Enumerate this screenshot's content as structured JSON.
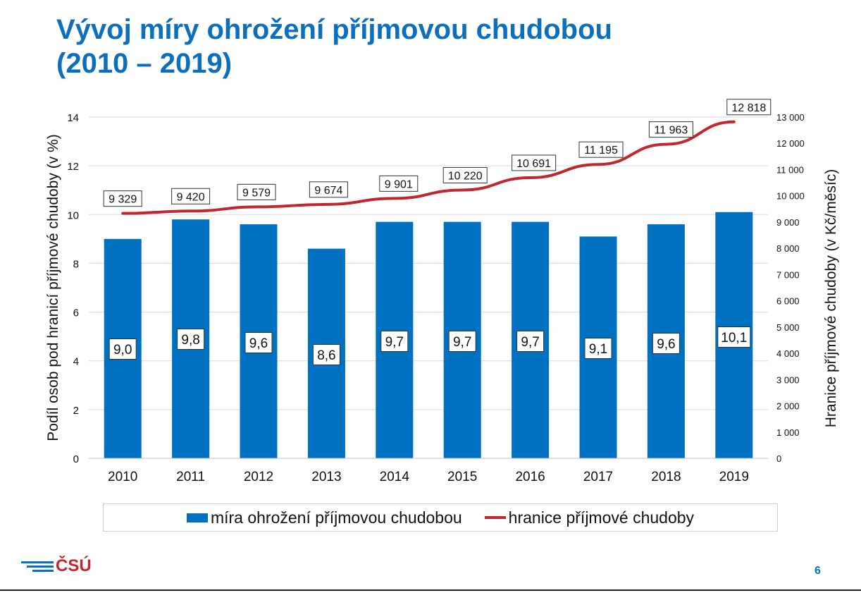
{
  "title": {
    "line1": "Vývoj míry ohrožení příjmovou chudobou",
    "line2": "(2010 – 2019)"
  },
  "colors": {
    "title": "#0c6fbd",
    "bar": "#0070c0",
    "line": "#c0282e",
    "logo": "#0c6fbd",
    "logo_text": "#c0282e",
    "page_number": "#0c6fbd"
  },
  "chart_data": {
    "type": "bar",
    "categories": [
      "2010",
      "2011",
      "2012",
      "2013",
      "2014",
      "2015",
      "2016",
      "2017",
      "2018",
      "2019"
    ],
    "series": [
      {
        "name": "míra ohrožení příjmovou chudobou",
        "type": "bar",
        "axis": "left",
        "values": [
          9.0,
          9.8,
          9.6,
          8.6,
          9.7,
          9.7,
          9.7,
          9.1,
          9.6,
          10.1
        ],
        "labels": [
          "9,0",
          "9,8",
          "9,6",
          "8,6",
          "9,7",
          "9,7",
          "9,7",
          "9,1",
          "9,6",
          "10,1"
        ]
      },
      {
        "name": "hranice příjmové chudoby",
        "type": "line",
        "axis": "right",
        "values": [
          9329,
          9420,
          9579,
          9674,
          9901,
          10220,
          10691,
          11195,
          11963,
          12818
        ],
        "labels": [
          "9 329",
          "9 420",
          "9 579",
          "9 674",
          "9 901",
          "10 220",
          "10 691",
          "11 195",
          "11 963",
          "12 818"
        ]
      }
    ],
    "ylabel": "Podíl osob pod hranicí příjmové chudoby (v %)",
    "y2label": "Hranice příjmové chudoby (v Kč/měsíc)",
    "ylim": [
      0,
      14
    ],
    "y2lim": [
      0,
      13000
    ],
    "yticks": [
      "0",
      "2",
      "4",
      "6",
      "8",
      "10",
      "12",
      "14"
    ],
    "y2ticks": [
      "0",
      "1 000",
      "2 000",
      "3 000",
      "4 000",
      "5 000",
      "6 000",
      "7 000",
      "8 000",
      "9 000",
      "10 000",
      "11 000",
      "12 000",
      "13 000"
    ],
    "grid": true,
    "legend_position": "bottom"
  },
  "legend": {
    "bar_label": "míra ohrožení příjmovou chudobou",
    "line_label": "hranice příjmové chudoby"
  },
  "footer": {
    "logo_text": "ČSÚ",
    "page_number": "6"
  }
}
